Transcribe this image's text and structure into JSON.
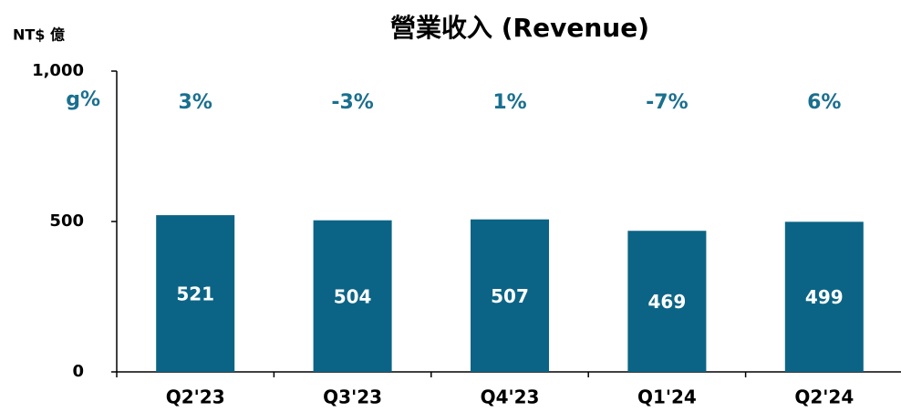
{
  "chart_data": {
    "type": "bar",
    "title": "營業收入 (Revenue)",
    "unit_label": "NT$ 億",
    "categories": [
      "Q2'23",
      "Q3'23",
      "Q4'23",
      "Q1'24",
      "Q2'24"
    ],
    "values": [
      521,
      504,
      507,
      469,
      499
    ],
    "color": "#0b6485",
    "growth": {
      "name": "g%",
      "color": "#1b6f8f",
      "values": [
        3,
        -3,
        1,
        -7,
        6
      ],
      "value_labels": [
        "3%",
        "-3%",
        "1%",
        "-7%",
        "6%"
      ]
    },
    "ylim": [
      0,
      1000
    ],
    "yticks": [
      0,
      500,
      {
        "value": 1000,
        "label": "1,000"
      }
    ],
    "grid": false
  }
}
